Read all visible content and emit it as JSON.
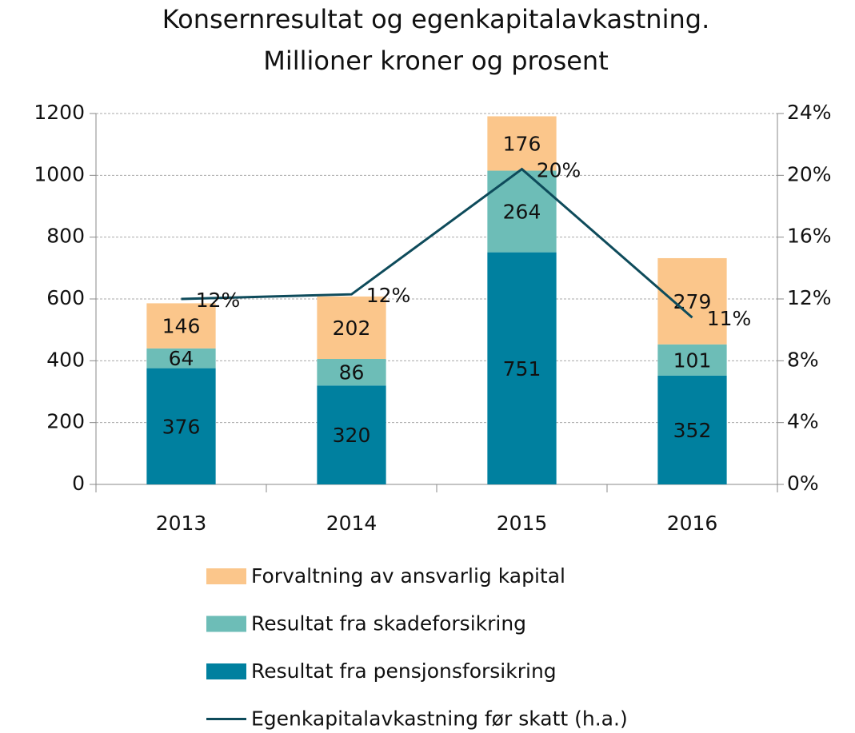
{
  "chart_data": {
    "type": "stacked_bar_line",
    "title": [
      "Konsernresultat og egenkapitalavkastning.",
      "Millioner kroner og prosent"
    ],
    "categories": [
      "2013",
      "2014",
      "2015",
      "2016"
    ],
    "series": [
      {
        "name": "Resultat fra pensjonsforsikring",
        "color": "#00809f",
        "values": [
          376,
          320,
          751,
          352
        ]
      },
      {
        "name": "Resultat fra skadeforsikring",
        "color": "#6dbdb7",
        "values": [
          64,
          86,
          264,
          101
        ]
      },
      {
        "name": "Forvaltning av ansvarlig kapital",
        "color": "#fbc68b",
        "values": [
          146,
          202,
          176,
          279
        ]
      },
      {
        "name": "Egenkapitalavkastning  før skatt (h.a.)",
        "color": "#0e4b5b",
        "axis": "y2",
        "line": true,
        "values": [
          12.0,
          12.3,
          20.4,
          10.8
        ],
        "value_labels": [
          "12%",
          "12%",
          "20%",
          "11%"
        ]
      }
    ],
    "legend_order": [
      2,
      1,
      0,
      3
    ],
    "ylim": [
      0,
      1200
    ],
    "yticks": [
      0,
      200,
      400,
      600,
      800,
      1000,
      1200
    ],
    "y2lim": [
      0,
      24
    ],
    "y2ticks": [
      {
        "value": 0,
        "label": "0%"
      },
      {
        "value": 4,
        "label": "4%"
      },
      {
        "value": 8,
        "label": "8%"
      },
      {
        "value": 12,
        "label": "12%"
      },
      {
        "value": 16,
        "label": "16%"
      },
      {
        "value": 20,
        "label": "20%"
      },
      {
        "value": 24,
        "label": "24%"
      }
    ],
    "grid": true
  }
}
